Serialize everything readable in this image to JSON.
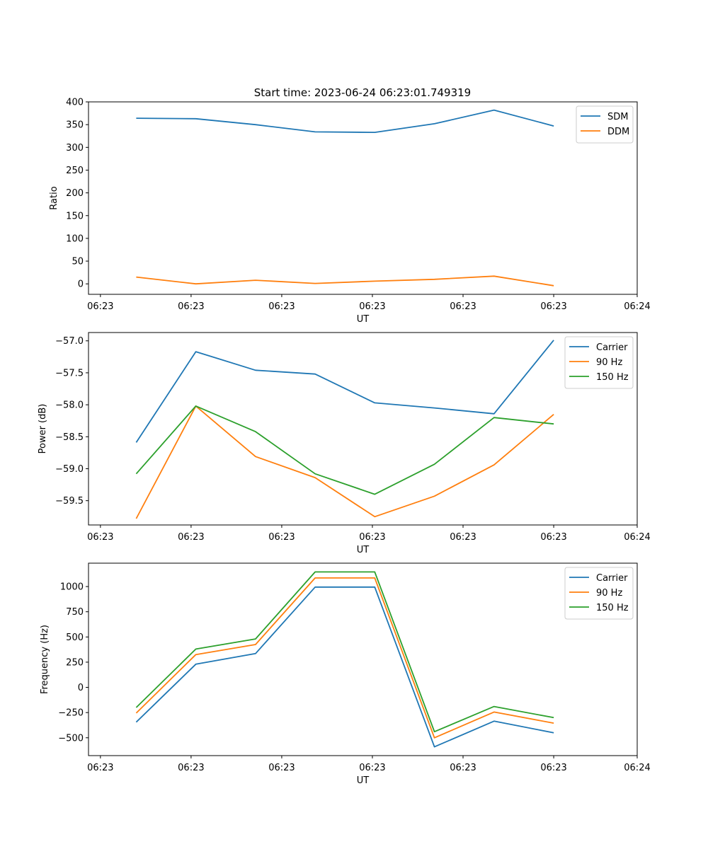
{
  "title": "Start time: 2023-06-24 06:23:01.749319",
  "chart_data": [
    {
      "type": "line",
      "x": [
        1,
        2,
        3,
        4,
        5,
        6,
        7,
        8
      ],
      "xlim": [
        0.2,
        9.4
      ],
      "x_ticks": [
        0.4,
        1.92,
        3.44,
        4.96,
        6.48,
        8.0,
        9.4
      ],
      "x_tick_labels": [
        "06:23",
        "06:23",
        "06:23",
        "06:23",
        "06:23",
        "06:23",
        "06:24"
      ],
      "xlabel": "UT",
      "ylabel": "Ratio",
      "ylim": [
        -23,
        400
      ],
      "yticks": [
        0,
        50,
        100,
        150,
        200,
        250,
        300,
        350,
        400
      ],
      "ytick_labels": [
        "0",
        "50",
        "100",
        "150",
        "200",
        "250",
        "300",
        "350",
        "400"
      ],
      "legend_position": "upper-right",
      "series": [
        {
          "name": "SDM",
          "color": "#1f77b4",
          "values": [
            364,
            363,
            350,
            334,
            333,
            352,
            382,
            347
          ]
        },
        {
          "name": "DDM",
          "color": "#ff7f0e",
          "values": [
            15,
            0,
            8,
            1,
            6,
            10,
            17,
            -4
          ]
        }
      ]
    },
    {
      "type": "line",
      "x": [
        1,
        2,
        3,
        4,
        5,
        6,
        7,
        8
      ],
      "xlim": [
        0.2,
        9.4
      ],
      "x_ticks": [
        0.4,
        1.92,
        3.44,
        4.96,
        6.48,
        8.0,
        9.4
      ],
      "x_tick_labels": [
        "06:23",
        "06:23",
        "06:23",
        "06:23",
        "06:23",
        "06:23",
        "06:24"
      ],
      "xlabel": "UT",
      "ylabel": "Power (dB)",
      "ylim": [
        -59.88,
        -56.87
      ],
      "yticks": [
        -59.5,
        -59.0,
        -58.5,
        -58.0,
        -57.5,
        -57.0
      ],
      "ytick_labels": [
        "−59.5",
        "−59.0",
        "−58.5",
        "−58.0",
        "−57.5",
        "−57.0"
      ],
      "legend_position": "upper-right",
      "series": [
        {
          "name": "Carrier",
          "color": "#1f77b4",
          "values": [
            -58.59,
            -57.17,
            -57.46,
            -57.52,
            -57.97,
            -58.05,
            -58.14,
            -56.99
          ]
        },
        {
          "name": "90 Hz",
          "color": "#ff7f0e",
          "values": [
            -59.78,
            -58.02,
            -58.81,
            -59.14,
            -59.75,
            -59.43,
            -58.94,
            -58.15
          ]
        },
        {
          "name": "150 Hz",
          "color": "#2ca02c",
          "values": [
            -59.08,
            -58.02,
            -58.42,
            -59.08,
            -59.4,
            -58.93,
            -58.2,
            -58.3
          ]
        }
      ]
    },
    {
      "type": "line",
      "x": [
        1,
        2,
        3,
        4,
        5,
        6,
        7,
        8
      ],
      "xlim": [
        0.2,
        9.4
      ],
      "x_ticks": [
        0.4,
        1.92,
        3.44,
        4.96,
        6.48,
        8.0,
        9.4
      ],
      "x_tick_labels": [
        "06:23",
        "06:23",
        "06:23",
        "06:23",
        "06:23",
        "06:23",
        "06:24"
      ],
      "xlabel": "UT",
      "ylabel": "Frequency (Hz)",
      "ylim": [
        -677,
        1232
      ],
      "yticks": [
        -500,
        -250,
        0,
        250,
        500,
        750,
        1000
      ],
      "ytick_labels": [
        "−500",
        "−250",
        "0",
        "250",
        "500",
        "750",
        "1000"
      ],
      "legend_position": "upper-right",
      "series": [
        {
          "name": "Carrier",
          "color": "#1f77b4",
          "values": [
            -345,
            230,
            335,
            995,
            995,
            -590,
            -335,
            -450
          ]
        },
        {
          "name": "90 Hz",
          "color": "#ff7f0e",
          "values": [
            -255,
            325,
            425,
            1085,
            1085,
            -500,
            -245,
            -355
          ]
        },
        {
          "name": "150 Hz",
          "color": "#2ca02c",
          "values": [
            -200,
            380,
            480,
            1145,
            1145,
            -440,
            -190,
            -300
          ]
        }
      ]
    }
  ]
}
